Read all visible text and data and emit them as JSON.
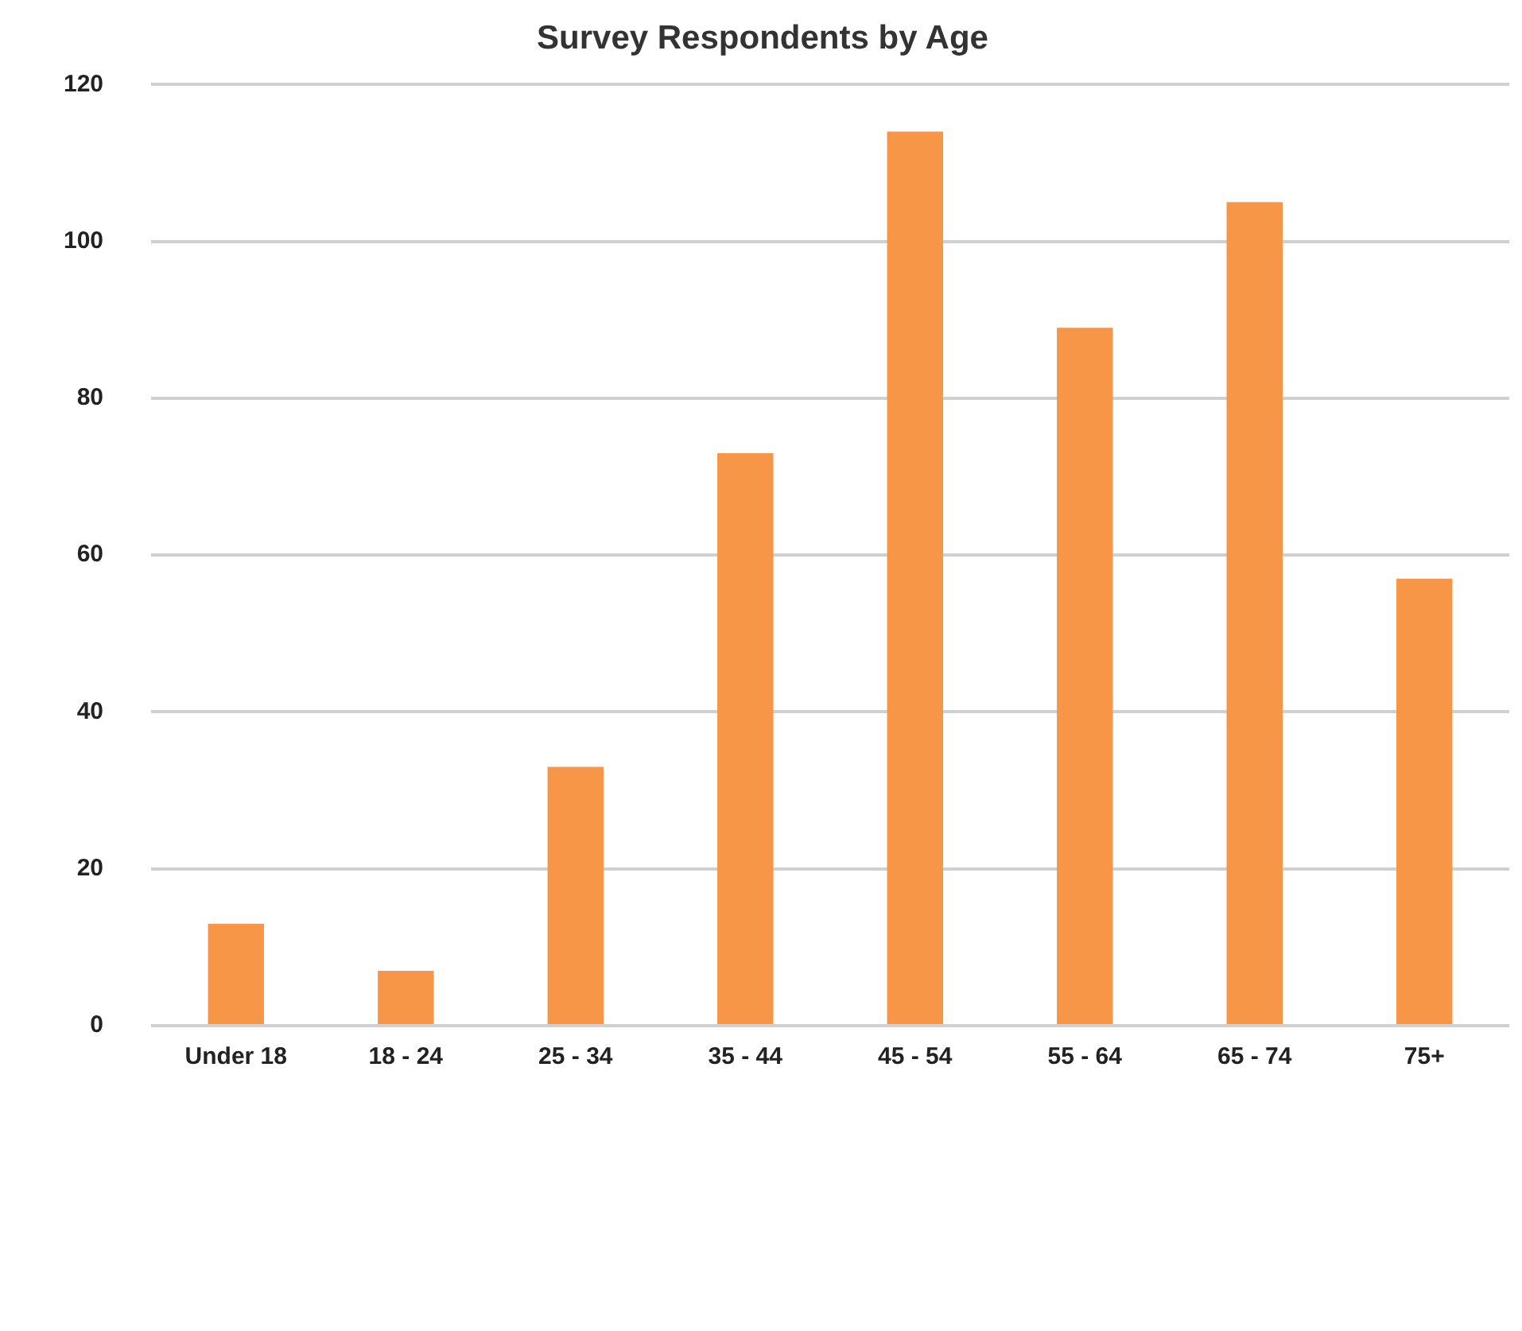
{
  "chart_data": {
    "type": "bar",
    "title": "Survey Respondents by Age",
    "categories": [
      "Under 18",
      "18 - 24",
      "25 - 34",
      "35 - 44",
      "45 - 54",
      "55 - 64",
      "65 - 74",
      "75+"
    ],
    "values": [
      13,
      7,
      33,
      73,
      114,
      89,
      105,
      57
    ],
    "color": "#f79646",
    "ylim": [
      0,
      120
    ],
    "yticks": [
      0,
      20,
      40,
      60,
      80,
      100,
      120
    ],
    "grid": "y",
    "legend": false
  }
}
